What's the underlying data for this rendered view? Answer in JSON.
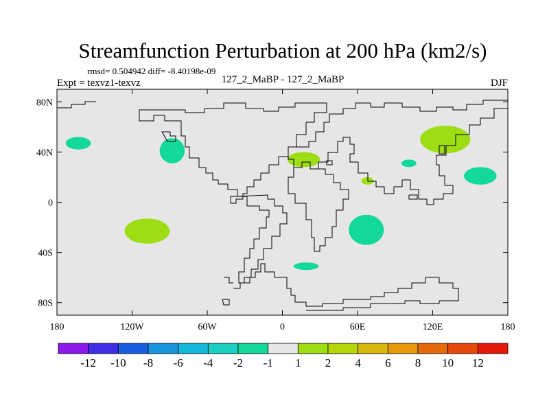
{
  "chart_data": {
    "type": "heatmap",
    "title": "Streamfunction Perturbation at 200 hPa (km2/s)",
    "stats": "rmsd= 0.504942 diff= -8.40198e-09",
    "left_label": "Expt = texvz1-texvz",
    "center_label": "127_2_MaBP - 127_2_MaBP",
    "right_label": "DJF",
    "x_ticks": [
      {
        "value": -180,
        "label": "180"
      },
      {
        "value": -120,
        "label": "120W"
      },
      {
        "value": -60,
        "label": "60W"
      },
      {
        "value": 0,
        "label": "0"
      },
      {
        "value": 60,
        "label": "60E"
      },
      {
        "value": 120,
        "label": "120E"
      },
      {
        "value": 180,
        "label": "180"
      }
    ],
    "y_ticks": [
      {
        "value": 80,
        "label": "80N"
      },
      {
        "value": 40,
        "label": "40N"
      },
      {
        "value": 0,
        "label": "0"
      },
      {
        "value": -40,
        "label": "40S"
      },
      {
        "value": -80,
        "label": "80S"
      }
    ],
    "xlim": [
      -180,
      180
    ],
    "ylim": [
      -90,
      90
    ],
    "colorbar": {
      "colors": [
        "#8b1ae8",
        "#3f2ee6",
        "#1a5fe0",
        "#1a95e0",
        "#14b8d8",
        "#19cfc2",
        "#12d89a",
        "#e6e6e6",
        "#9edc14",
        "#b6d60a",
        "#d8b80a",
        "#e69a0a",
        "#e66a0a",
        "#e64a0a",
        "#e61a0a"
      ],
      "labels": [
        "-12",
        "-10",
        "-8",
        "-6",
        "-4",
        "-2",
        "-1",
        "1",
        "2",
        "4",
        "6",
        "8",
        "10",
        "12"
      ]
    },
    "anomalies": [
      {
        "class": "-1 to -2",
        "lon": -163,
        "lat": 47,
        "rlon": 10,
        "rlat": 5,
        "color": "#12d89a"
      },
      {
        "class": "-1 to -2",
        "lon": -88,
        "lat": 41,
        "rlon": 10,
        "rlat": 10,
        "color": "#12d89a"
      },
      {
        "class": "1 to 2",
        "lon": 17,
        "lat": 34,
        "rlon": 13,
        "rlat": 6,
        "color": "#9edc14"
      },
      {
        "class": "1 to 2",
        "lon": 68,
        "lat": 17,
        "rlon": 5,
        "rlat": 3,
        "color": "#9edc14"
      },
      {
        "class": "1 to 2",
        "lon": 130,
        "lat": 50,
        "rlon": 20,
        "rlat": 11,
        "color": "#9edc14"
      },
      {
        "class": "-1 to -2",
        "lon": 101,
        "lat": 31,
        "rlon": 6,
        "rlat": 3,
        "color": "#12d89a"
      },
      {
        "class": "-1 to -2",
        "lon": 158,
        "lat": 21,
        "rlon": 13,
        "rlat": 7,
        "color": "#12d89a"
      },
      {
        "class": "-1 to -2",
        "lon": 67,
        "lat": -22,
        "rlon": 14,
        "rlat": 12,
        "color": "#12d89a"
      },
      {
        "class": "1 to 2",
        "lon": -108,
        "lat": -23,
        "rlon": 18,
        "rlat": 10,
        "color": "#9edc14"
      },
      {
        "class": "-1 to -2",
        "lon": 19,
        "lat": -51,
        "rlon": 10,
        "rlat": 3,
        "color": "#12d89a"
      }
    ]
  }
}
